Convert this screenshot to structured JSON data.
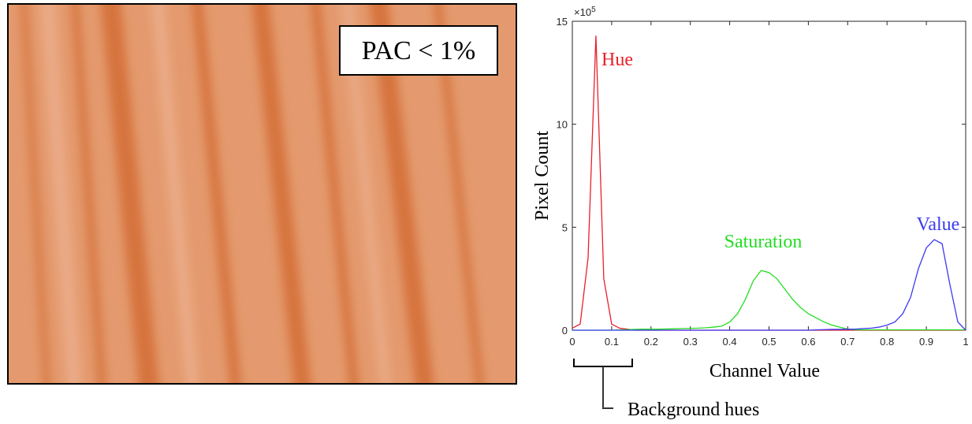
{
  "image_label": "PAC < 1%",
  "chart_data": {
    "type": "line",
    "x_label": "Channel Value",
    "y_label": "Pixel Count",
    "y_exponent_base": "×10",
    "y_exponent": "5",
    "annotation": "Background hues",
    "x": [
      0,
      0.02,
      0.04,
      0.06,
      0.08,
      0.1,
      0.12,
      0.14,
      0.16,
      0.18,
      0.2,
      0.22,
      0.24,
      0.26,
      0.28,
      0.3,
      0.32,
      0.34,
      0.36,
      0.38,
      0.4,
      0.42,
      0.44,
      0.46,
      0.48,
      0.5,
      0.52,
      0.54,
      0.56,
      0.58,
      0.6,
      0.62,
      0.64,
      0.66,
      0.68,
      0.7,
      0.72,
      0.74,
      0.76,
      0.78,
      0.8,
      0.82,
      0.84,
      0.86,
      0.88,
      0.9,
      0.92,
      0.94,
      0.96,
      0.98,
      1
    ],
    "series": [
      {
        "name": "Hue",
        "color": "#e8202a",
        "values": [
          0.1,
          0.3,
          3.5,
          14.3,
          2.5,
          0.3,
          0.1,
          0.05,
          0,
          0,
          0,
          0,
          0,
          0,
          0,
          0,
          0,
          0,
          0,
          0,
          0,
          0,
          0,
          0,
          0,
          0,
          0,
          0,
          0,
          0,
          0,
          0,
          0,
          0,
          0,
          0,
          0,
          0,
          0,
          0,
          0,
          0,
          0,
          0,
          0,
          0,
          0,
          0,
          0,
          0,
          0
        ]
      },
      {
        "name": "Saturation",
        "color": "#22dd22",
        "values": [
          0,
          0,
          0,
          0,
          0,
          0,
          0.02,
          0.03,
          0.04,
          0.05,
          0.05,
          0.05,
          0.06,
          0.07,
          0.08,
          0.09,
          0.1,
          0.12,
          0.15,
          0.2,
          0.4,
          0.8,
          1.5,
          2.4,
          2.9,
          2.8,
          2.5,
          2.0,
          1.5,
          1.1,
          0.8,
          0.6,
          0.4,
          0.25,
          0.15,
          0.05,
          0.02,
          0.02,
          0.02,
          0.02,
          0.02,
          0.02,
          0.02,
          0.02,
          0.02,
          0.02,
          0.02,
          0.02,
          0.02,
          0.02,
          0.02
        ]
      },
      {
        "name": "Value",
        "color": "#3b3bf0",
        "values": [
          0,
          0,
          0,
          0,
          0,
          0,
          0,
          0,
          0,
          0,
          0,
          0,
          0,
          0,
          0,
          0,
          0,
          0,
          0,
          0,
          0,
          0,
          0,
          0,
          0,
          0,
          0,
          0,
          0,
          0,
          0,
          0.02,
          0.03,
          0.04,
          0.04,
          0.05,
          0.05,
          0.08,
          0.1,
          0.15,
          0.25,
          0.4,
          0.8,
          1.6,
          3.0,
          4.0,
          4.4,
          4.2,
          2.2,
          0.4,
          0
        ]
      }
    ],
    "xlim": [
      0,
      1
    ],
    "ylim": [
      0,
      15
    ],
    "xticks": [
      0,
      0.1,
      0.2,
      0.3,
      0.4,
      0.5,
      0.6,
      0.7,
      0.8,
      0.9,
      1
    ],
    "yticks": [
      0,
      5,
      10,
      15
    ]
  }
}
